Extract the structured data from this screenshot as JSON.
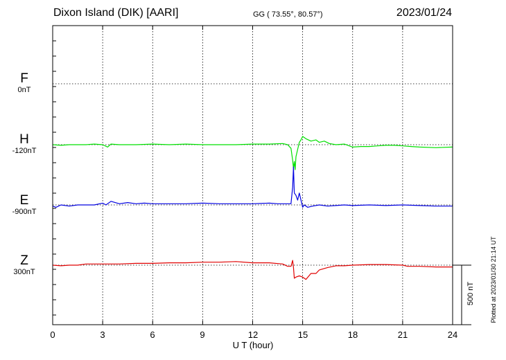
{
  "header": {
    "station": "Dixon Island (DIK)  [AARI]",
    "coords": "GG ( 73.55°,  80.57°)",
    "date": "2023/01/24"
  },
  "footer": {
    "plotted": "Plotted at 2023/01/30 21:14 UT",
    "scale_label": "500 nT"
  },
  "chart_data": {
    "type": "line",
    "title": "Dixon Island (DIK)  [AARI]",
    "xlabel": "U T (hour)",
    "ylabel": "",
    "xlim": [
      0,
      24
    ],
    "x_ticks": [
      "0",
      "3",
      "6",
      "9",
      "12",
      "15",
      "18",
      "21",
      "24"
    ],
    "grid": true,
    "scale_bar_nT": 500,
    "series": [
      {
        "name": "F",
        "baseline": "0nT",
        "color": "#ffa500",
        "x": [],
        "values": []
      },
      {
        "name": "H",
        "baseline": "-120nT",
        "color": "#00e000",
        "x": [
          0,
          0.5,
          1,
          1.5,
          2,
          2.5,
          3,
          3.3,
          3.5,
          4,
          5,
          6,
          7,
          8,
          9,
          10,
          11,
          12,
          13,
          13.8,
          14.1,
          14.3,
          14.4,
          14.45,
          14.5,
          14.55,
          14.6,
          14.7,
          14.8,
          14.9,
          15,
          15.2,
          15.5,
          15.8,
          16,
          16.3,
          16.6,
          17,
          17.5,
          18,
          18.5,
          19,
          19.5,
          20,
          20.5,
          21,
          21.5,
          22,
          23,
          24
        ],
        "values": [
          0,
          -5,
          0,
          0,
          0,
          5,
          0,
          -20,
          5,
          0,
          0,
          5,
          0,
          5,
          0,
          0,
          0,
          5,
          5,
          10,
          0,
          -30,
          -130,
          -200,
          -140,
          -210,
          -100,
          -40,
          20,
          40,
          70,
          50,
          30,
          40,
          20,
          30,
          10,
          0,
          5,
          -20,
          -15,
          -15,
          -10,
          -5,
          -5,
          -10,
          -15,
          -20,
          -25,
          -20
        ]
      },
      {
        "name": "E",
        "baseline": "-900nT",
        "color": "#0000e0",
        "x": [
          0,
          0.2,
          0.5,
          1,
          1.5,
          2,
          2.5,
          3,
          3.2,
          3.5,
          4,
          4.5,
          5,
          5.5,
          6,
          7,
          8,
          9,
          10,
          11,
          12,
          13,
          13.5,
          14,
          14.3,
          14.4,
          14.45,
          14.5,
          14.6,
          14.7,
          14.8,
          15,
          15.1,
          15.3,
          15.6,
          16,
          16.5,
          17,
          17.5,
          18,
          19,
          20,
          21,
          22,
          23,
          24
        ],
        "values": [
          -10,
          -20,
          0,
          -10,
          0,
          0,
          0,
          15,
          0,
          30,
          10,
          20,
          10,
          15,
          10,
          10,
          10,
          15,
          10,
          10,
          10,
          15,
          10,
          10,
          10,
          150,
          320,
          100,
          80,
          40,
          100,
          -20,
          0,
          -20,
          -10,
          0,
          -10,
          -5,
          0,
          -5,
          0,
          -5,
          0,
          -5,
          -10,
          -10
        ]
      },
      {
        "name": "Z",
        "baseline": "300nT",
        "color": "#e00000",
        "x": [
          0,
          0.5,
          1,
          1.5,
          2,
          2.5,
          3,
          4,
          5,
          6,
          7,
          8,
          9,
          10,
          11,
          12,
          13,
          13.8,
          14.1,
          14.3,
          14.4,
          14.45,
          14.5,
          14.6,
          14.8,
          15,
          15.2,
          15.5,
          15.8,
          16,
          16.5,
          17,
          17.5,
          18,
          19,
          20,
          21,
          21.3,
          22,
          23,
          24
        ],
        "values": [
          0,
          -5,
          0,
          0,
          10,
          10,
          10,
          10,
          15,
          15,
          20,
          20,
          25,
          25,
          30,
          20,
          20,
          10,
          -10,
          -10,
          40,
          -20,
          -110,
          -100,
          -90,
          -100,
          -120,
          -70,
          -70,
          -40,
          -20,
          -5,
          -5,
          0,
          5,
          5,
          0,
          -10,
          -10,
          -15,
          -15
        ]
      }
    ]
  }
}
